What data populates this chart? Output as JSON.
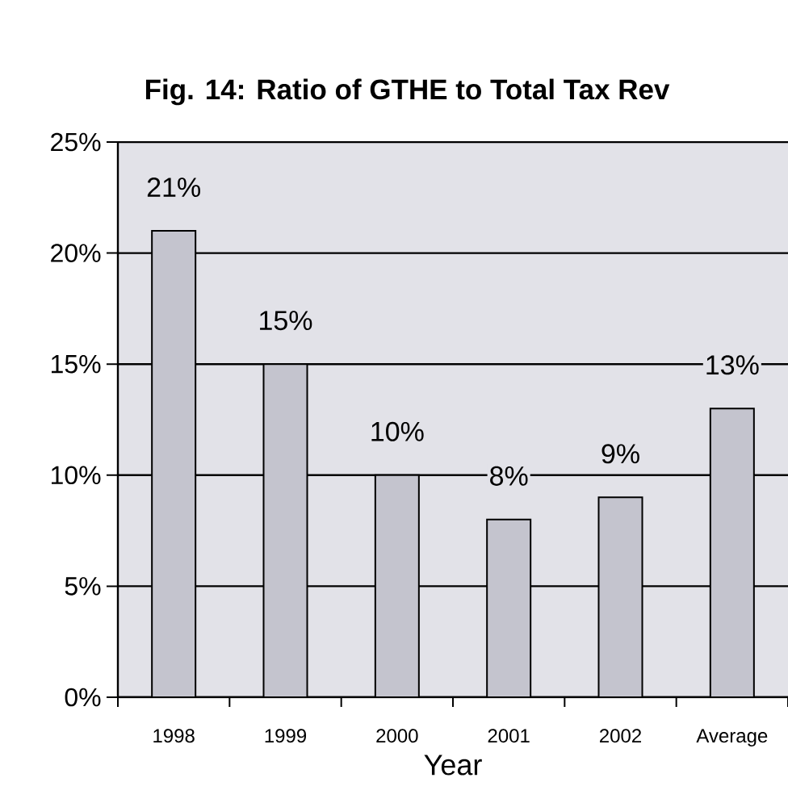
{
  "chart_data": {
    "type": "bar",
    "title": "Fig. 14: Ratio of GTHE to Total Tax Rev",
    "xlabel": "Year",
    "categories": [
      "1998",
      "1999",
      "2000",
      "2001",
      "2002",
      "Average"
    ],
    "values": [
      21,
      15,
      10,
      8,
      9,
      13
    ],
    "value_labels": [
      "21%",
      "15%",
      "10%",
      "8%",
      "9%",
      "13%"
    ],
    "color": "#c4c4ce",
    "ylim": [
      0,
      25
    ],
    "yticks": [
      {
        "value": 0,
        "label": "0%"
      },
      {
        "value": 5,
        "label": "5%"
      },
      {
        "value": 10,
        "label": "10%"
      },
      {
        "value": 15,
        "label": "15%"
      },
      {
        "value": 20,
        "label": "20%"
      },
      {
        "value": 25,
        "label": "25%"
      }
    ],
    "grid": "y"
  }
}
